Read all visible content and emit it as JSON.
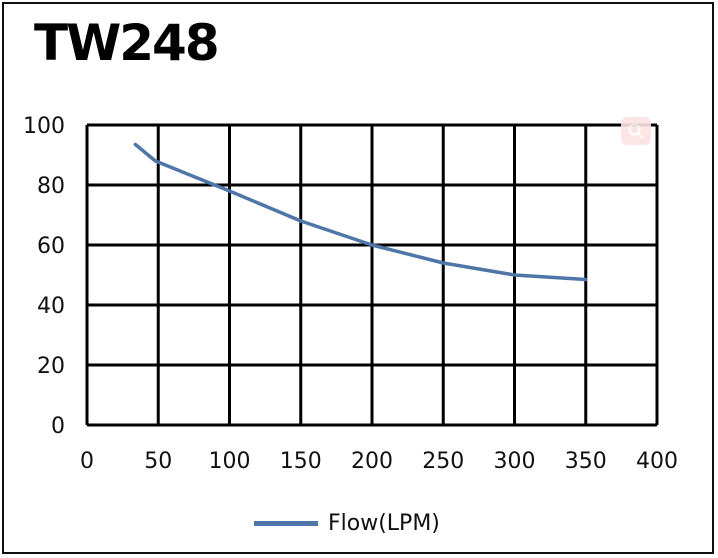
{
  "chart_data": {
    "type": "line",
    "title": "TW248",
    "xlabel": "",
    "ylabel": "",
    "xlim": [
      0,
      400
    ],
    "ylim": [
      0,
      100
    ],
    "x_ticks": [
      0,
      50,
      100,
      150,
      200,
      250,
      300,
      350,
      400
    ],
    "y_ticks": [
      0,
      20,
      40,
      60,
      80,
      100
    ],
    "grid": true,
    "legend_position": "bottom",
    "series": [
      {
        "name": "Flow(LPM)",
        "color": "#4f76a8",
        "x": [
          34,
          48,
          100,
          150,
          200,
          250,
          300,
          350
        ],
        "y": [
          93.5,
          88,
          78,
          68,
          60,
          54,
          50,
          48.5
        ]
      }
    ]
  },
  "icons": {
    "zoom": "magnifier-icon"
  }
}
